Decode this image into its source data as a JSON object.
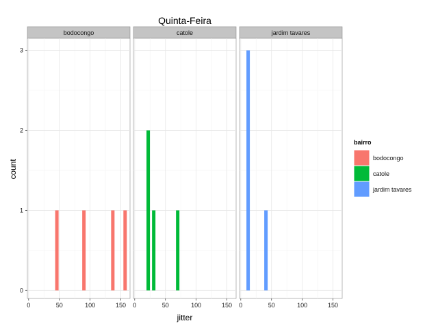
{
  "chart_data": {
    "type": "bar",
    "title": "Quinta-Feira",
    "xlabel": "jitter",
    "ylabel": "count",
    "xlim": [
      -2,
      165
    ],
    "ylim": [
      -0.1,
      3.15
    ],
    "xticks": [
      0,
      50,
      100,
      150
    ],
    "yticks": [
      0,
      1,
      2,
      3
    ],
    "grid": true,
    "legend_position": "right",
    "legend_title": "bairro",
    "series": [
      {
        "name": "bodocongo",
        "panel_label": "bodocongo",
        "color": "#F8766D",
        "x": [
          46,
          90,
          137,
          157
        ],
        "values": [
          1,
          1,
          1,
          1
        ]
      },
      {
        "name": "catole",
        "panel_label": "catole",
        "color": "#00BA38",
        "x": [
          22,
          31,
          70
        ],
        "values": [
          2,
          1,
          1
        ]
      },
      {
        "name": "jardim tavares",
        "panel_label": "jardim tavares",
        "color": "#619CFF",
        "x": [
          12,
          41
        ],
        "values": [
          3,
          1
        ]
      }
    ]
  }
}
